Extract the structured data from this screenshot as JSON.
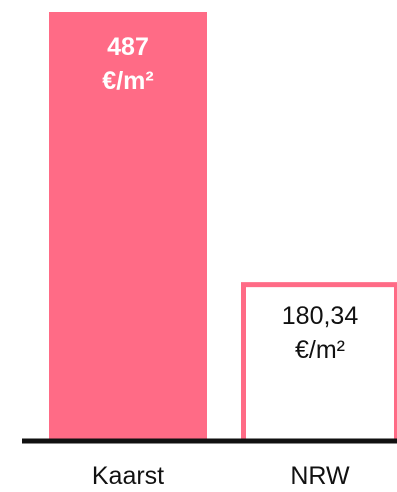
{
  "chart_data": {
    "type": "bar",
    "categories": [
      "Kaarst",
      "NRW"
    ],
    "values": [
      487,
      180.34
    ],
    "value_labels": [
      [
        "487",
        "€/m²"
      ],
      [
        "180,34",
        "€/m²"
      ]
    ],
    "title": "",
    "xlabel": "",
    "ylabel": "",
    "ylim": [
      0,
      487
    ],
    "grid": false,
    "legend": "none",
    "colors": {
      "bar_fill_primary": "#ff6b86",
      "bar_fill_secondary": "#ffffff",
      "bar_stroke_secondary": "#ff6b86",
      "label_on_primary": "#ffffff",
      "label_on_secondary": "#111111",
      "axis": "#111111"
    }
  }
}
